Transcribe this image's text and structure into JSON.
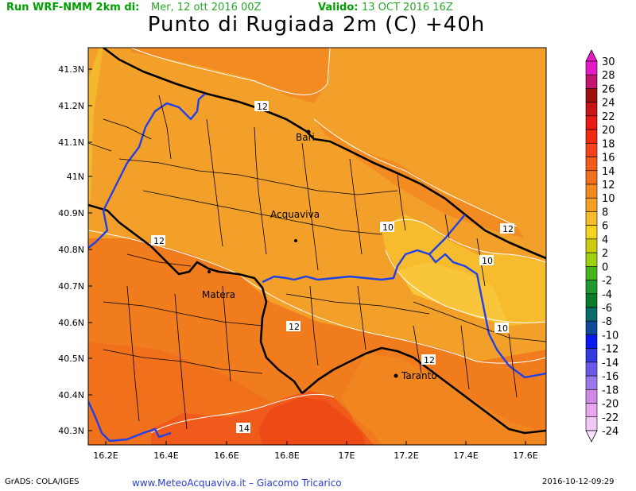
{
  "header": {
    "run_label": "Run WRF-NMM 2km di:",
    "run_date": "Mer, 12 ott 2016 00Z",
    "valid_label": "Valido:",
    "valid_date": "13 OCT 2016 16Z",
    "title": "Punto di Rugiada 2m (C) +40h"
  },
  "map": {
    "lat_labels": [
      "41.3N",
      "41.2N",
      "41.1N",
      "41N",
      "40.9N",
      "40.8N",
      "40.7N",
      "40.6N",
      "40.5N",
      "40.4N",
      "40.3N"
    ],
    "lon_labels": [
      "16.2E",
      "16.4E",
      "16.6E",
      "16.8E",
      "17E",
      "17.2E",
      "17.4E",
      "17.6E"
    ],
    "places": [
      "Bari",
      "Acquaviva",
      "Matera",
      "Taranto"
    ],
    "contour_labels": [
      "12",
      "12",
      "12",
      "10",
      "12",
      "10",
      "10",
      "12",
      "12",
      "14"
    ]
  },
  "colorbar": {
    "levels": [
      "30",
      "28",
      "26",
      "24",
      "22",
      "20",
      "18",
      "16",
      "14",
      "12",
      "10",
      "8",
      "6",
      "4",
      "2",
      "0",
      "-2",
      "-4",
      "-6",
      "-8",
      "-10",
      "-12",
      "-14",
      "-16",
      "-18",
      "-20",
      "-22",
      "-24"
    ],
    "colors": [
      "#e51ac4",
      "#c4166e",
      "#a01010",
      "#c81414",
      "#e81a14",
      "#f02c10",
      "#f8441e",
      "#f45a1a",
      "#f0701e",
      "#f28a20",
      "#f4a024",
      "#f7bc2c",
      "#f4d420",
      "#cccc10",
      "#9ed212",
      "#4ab41c",
      "#1e9a30",
      "#0c7a2a",
      "#0a6a6a",
      "#104a96",
      "#0a1af0",
      "#3438e0",
      "#6a58e8",
      "#9a78ec",
      "#d08ae6",
      "#e8a8f0",
      "#f2c8f6",
      "#f8e2fa"
    ]
  },
  "footer": {
    "left": "GrADS: COLA/IGES",
    "center": "www.MeteoAcquaviva.it  –  Giacomo Tricarico",
    "right": "2016-10-12-09:29"
  }
}
